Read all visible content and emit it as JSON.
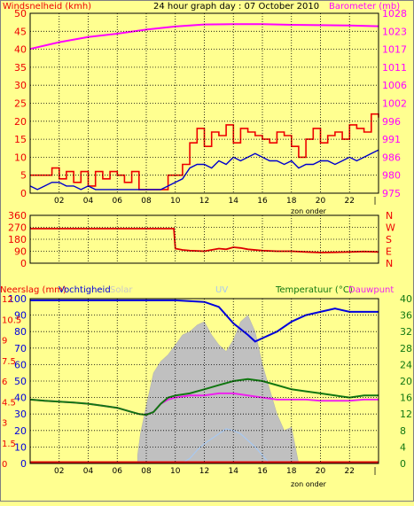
{
  "header": {
    "title": "24 hour graph day : 07 October 2010",
    "left_label": "Windsnelheid (kmh)",
    "right_label": "Barometer (mb)"
  },
  "colors": {
    "background": "#ffff90",
    "wind_gust": "#ee0000",
    "wind_avg": "#0000cc",
    "barometer": "#ff00ff",
    "direction": "#dd0000",
    "humidity": "#0000dd",
    "temperature": "#117711",
    "dewpoint": "#ee22ee",
    "solar": "#c0c0c0",
    "uv": "#a8c8f0",
    "rain": "#dd0000",
    "grid": "#000000"
  },
  "chart_data": [
    {
      "type": "line",
      "title": "24 hour graph day : 07 October 2010",
      "ylabel": "Windsnelheid (kmh)",
      "y2label": "Barometer (mb)",
      "ylim": [
        0,
        50
      ],
      "y2ticks": [
        "1028",
        "1023",
        "1017",
        "1011",
        "1006",
        "1002",
        "996",
        "991",
        "986",
        "980",
        "975"
      ],
      "yticks": [
        "50",
        "45",
        "40",
        "35",
        "30",
        "25",
        "20",
        "15",
        "10",
        "5",
        "0"
      ],
      "xticks": [
        "02",
        "04",
        "06",
        "08",
        "10",
        "12",
        "14",
        "16",
        "18",
        "20",
        "22"
      ],
      "xlim": [
        0,
        24
      ],
      "annotation": "zon onder",
      "series": [
        {
          "name": "",
          "role": "wind_gust",
          "x": [
            0,
            0.5,
            1,
            1.5,
            2,
            2.5,
            3,
            3.5,
            4,
            4.5,
            5,
            5.5,
            6,
            6.5,
            7,
            7.5,
            8,
            8.5,
            9,
            9.5,
            10,
            10.5,
            11,
            11.5,
            12,
            12.5,
            13,
            13.5,
            14,
            14.5,
            15,
            15.5,
            16,
            16.5,
            17,
            17.5,
            18,
            18.5,
            19,
            19.5,
            20,
            20.5,
            21,
            21.5,
            22,
            22.5,
            23,
            23.5,
            24
          ],
          "values": [
            5,
            5,
            5,
            7,
            4,
            6,
            3,
            6,
            2,
            6,
            4,
            6,
            5,
            3,
            6,
            1,
            1,
            1,
            1,
            5,
            5,
            8,
            14,
            18,
            13,
            17,
            16,
            19,
            14,
            18,
            17,
            16,
            15,
            14,
            17,
            16,
            13,
            10,
            15,
            18,
            14,
            16,
            17,
            15,
            19,
            18,
            17,
            22,
            21
          ]
        },
        {
          "name": "",
          "role": "wind_avg",
          "x": [
            0,
            0.5,
            1,
            1.5,
            2,
            2.5,
            3,
            3.5,
            4,
            4.5,
            5,
            5.5,
            6,
            6.5,
            7,
            7.5,
            8,
            8.5,
            9,
            9.5,
            10,
            10.5,
            11,
            11.5,
            12,
            12.5,
            13,
            13.5,
            14,
            14.5,
            15,
            15.5,
            16,
            16.5,
            17,
            17.5,
            18,
            18.5,
            19,
            19.5,
            20,
            20.5,
            21,
            21.5,
            22,
            22.5,
            23,
            23.5,
            24
          ],
          "values": [
            2,
            1,
            2,
            3,
            3,
            2,
            2,
            1,
            2,
            1,
            1,
            1,
            1,
            1,
            1,
            1,
            1,
            1,
            1,
            2,
            3,
            4,
            7,
            8,
            8,
            7,
            9,
            8,
            10,
            9,
            10,
            11,
            10,
            9,
            9,
            8,
            9,
            7,
            8,
            8,
            9,
            9,
            8,
            9,
            10,
            9,
            10,
            11,
            12
          ]
        },
        {
          "name": "",
          "role": "barometer",
          "x": [
            0,
            2,
            4,
            6,
            8,
            10,
            12,
            14,
            16,
            18,
            20,
            22,
            24
          ],
          "values": [
            1017.5,
            1019.5,
            1021.0,
            1022.0,
            1023.2,
            1024.1,
            1024.7,
            1024.8,
            1024.8,
            1024.6,
            1024.5,
            1024.4,
            1024.2
          ]
        }
      ]
    },
    {
      "type": "line",
      "yticks": [
        "360",
        "270",
        "180",
        "90",
        "0"
      ],
      "right_ticks": [
        "N",
        "W",
        "S",
        "E",
        "N"
      ],
      "ylim": [
        0,
        360
      ],
      "xlim": [
        0,
        24
      ],
      "series": [
        {
          "name": "",
          "role": "wind_direction",
          "x": [
            0,
            1,
            2,
            3,
            4,
            5,
            6,
            7,
            8,
            9,
            9.9,
            10,
            10.5,
            11,
            12,
            12.5,
            13,
            13.5,
            14,
            14.5,
            15,
            16,
            17,
            18,
            19,
            20,
            21,
            22,
            23,
            24
          ],
          "values": [
            260,
            260,
            260,
            260,
            260,
            260,
            260,
            260,
            260,
            260,
            260,
            110,
            100,
            95,
            90,
            100,
            110,
            105,
            120,
            115,
            105,
            95,
            90,
            90,
            85,
            80,
            82,
            85,
            88,
            85
          ]
        }
      ]
    },
    {
      "type": "line",
      "ylabel": "Neerslag (mm)",
      "labels": {
        "humidity": "Vochtigheid",
        "solar": "Solar",
        "uv": "UV",
        "temperature": "Temperatuur (°C)",
        "dewpoint": "Dauwpunt"
      },
      "yticks_rain": [
        "12",
        "10.5",
        "9",
        "7.5",
        "6",
        "4.5",
        "3",
        "1.5",
        "0"
      ],
      "yticks_humidity": [
        "100",
        "90",
        "80",
        "70",
        "60",
        "50",
        "40",
        "30",
        "20",
        "10",
        "0"
      ],
      "yticks_temp": [
        "40",
        "36",
        "32",
        "28",
        "24",
        "20",
        "16",
        "12",
        "8",
        "4",
        "0"
      ],
      "ylim": [
        0,
        100
      ],
      "y2lim": [
        0,
        40
      ],
      "xlim": [
        0,
        24
      ],
      "xticks": [
        "02",
        "04",
        "06",
        "08",
        "10",
        "12",
        "14",
        "16",
        "18",
        "20",
        "22"
      ],
      "annotation": "zon onder",
      "series": [
        {
          "name": "Vochtigheid",
          "role": "humidity",
          "x": [
            0,
            2,
            4,
            6,
            8,
            10,
            12,
            13,
            14,
            15,
            15.5,
            16,
            17,
            18,
            19,
            20,
            21,
            22,
            23,
            24
          ],
          "values": [
            99,
            99,
            99,
            99,
            99,
            99,
            98,
            95,
            85,
            78,
            74,
            76,
            80,
            86,
            90,
            92,
            94,
            92,
            92,
            92
          ]
        },
        {
          "name": "Temperatuur (°C)",
          "role": "temperature",
          "x": [
            0,
            1,
            2,
            3,
            4,
            5,
            6,
            7,
            7.5,
            8,
            8.5,
            9,
            9.5,
            10,
            11,
            12,
            13,
            14,
            15,
            16,
            17,
            18,
            19,
            20,
            21,
            22,
            23,
            24
          ],
          "values": [
            15.5,
            15.2,
            15,
            14.8,
            14.5,
            14,
            13.5,
            12.5,
            12.0,
            11.8,
            12.5,
            14.5,
            16,
            16.5,
            17,
            18,
            19,
            20,
            20.5,
            20,
            19,
            18,
            17.5,
            17,
            16.5,
            16,
            16.5,
            16.5
          ]
        },
        {
          "name": "Dauwpunt",
          "role": "dewpoint",
          "x": [
            0,
            1,
            2,
            3,
            4,
            5,
            6,
            7,
            7.5,
            8,
            8.5,
            9,
            9.5,
            10,
            11,
            12,
            13,
            14,
            15,
            16,
            17,
            18,
            19,
            20,
            21,
            22,
            23,
            24
          ],
          "values": [
            15.5,
            15.2,
            15,
            14.8,
            14.5,
            14,
            13.5,
            12.5,
            12.0,
            11.8,
            12.5,
            14.5,
            15.5,
            16,
            16.5,
            16.5,
            17,
            17,
            16.5,
            16,
            15.5,
            15.5,
            15.5,
            15.2,
            15.2,
            15.2,
            15.5,
            15.5
          ]
        },
        {
          "name": "Solar",
          "role": "solar",
          "x": [
            7.4,
            7.6,
            8,
            8.5,
            9,
            9.5,
            10,
            10.5,
            11,
            11.5,
            12,
            12.5,
            13,
            13.5,
            14,
            14.5,
            15,
            15.5,
            16,
            16.5,
            17,
            17.5,
            18,
            18.5
          ],
          "values": [
            5,
            18,
            35,
            55,
            62,
            66,
            72,
            78,
            80,
            84,
            86,
            78,
            72,
            68,
            75,
            86,
            90,
            80,
            60,
            45,
            30,
            20,
            22,
            0
          ]
        },
        {
          "name": "UV",
          "role": "uv",
          "x": [
            10.4,
            11,
            11.5,
            12,
            12.5,
            13,
            13.5,
            14,
            14.5,
            15,
            15.5,
            16,
            16.5
          ],
          "values": [
            0,
            3,
            8,
            12,
            15,
            18,
            21,
            20,
            18,
            14,
            10,
            5,
            0
          ]
        },
        {
          "name": "Neerslag (mm)",
          "role": "rain",
          "x": [
            0,
            24
          ],
          "values": [
            0.1,
            0.1
          ]
        }
      ]
    }
  ]
}
